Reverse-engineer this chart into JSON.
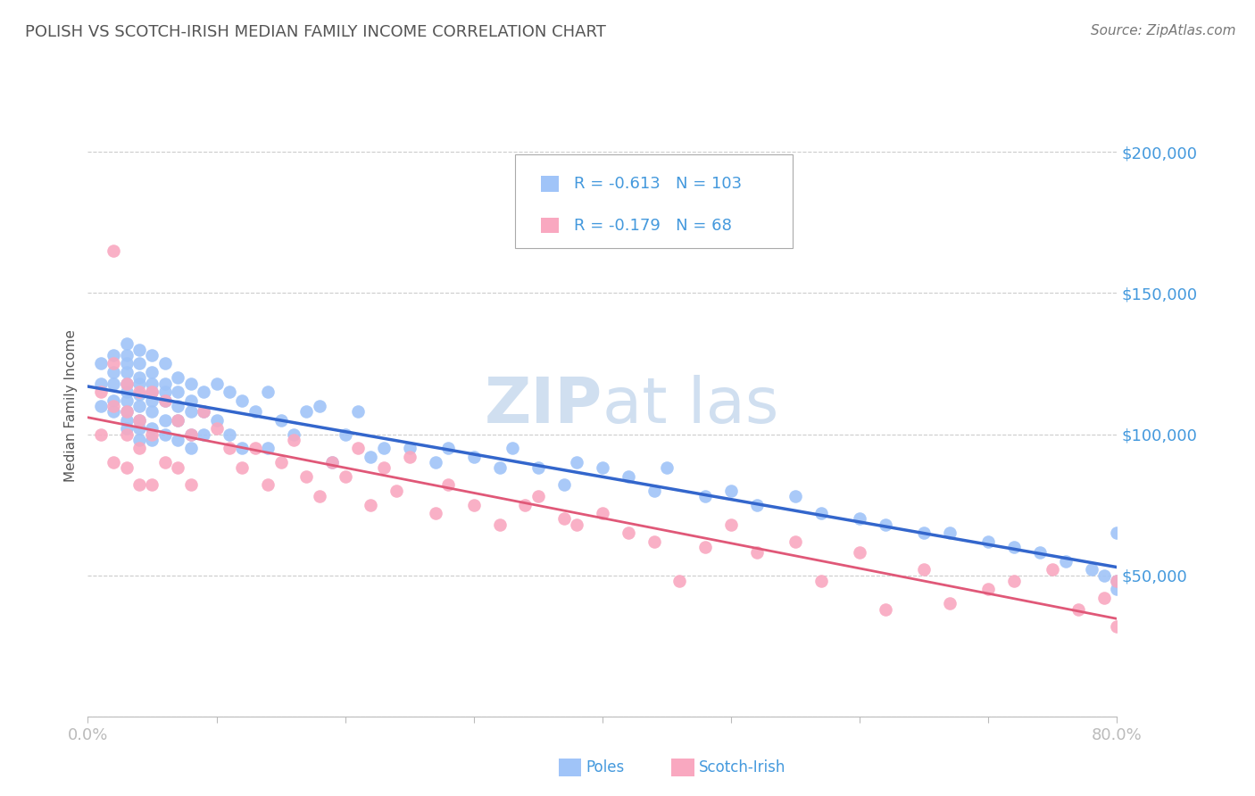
{
  "title": "POLISH VS SCOTCH-IRISH MEDIAN FAMILY INCOME CORRELATION CHART",
  "source": "Source: ZipAtlas.com",
  "ylabel": "Median Family Income",
  "xlim": [
    0.0,
    0.8
  ],
  "ylim": [
    0,
    220000
  ],
  "yticks": [
    0,
    50000,
    100000,
    150000,
    200000
  ],
  "xticks": [
    0.0,
    0.1,
    0.2,
    0.3,
    0.4,
    0.5,
    0.6,
    0.7,
    0.8
  ],
  "poles_color": "#a0c4f8",
  "scotch_color": "#f9a8c0",
  "poles_line_color": "#3366cc",
  "scotch_line_color": "#e05878",
  "R_poles": -0.613,
  "N_poles": 103,
  "R_scotch": -0.179,
  "N_scotch": 68,
  "background_color": "#ffffff",
  "grid_color": "#cccccc",
  "title_color": "#555555",
  "label_color": "#4499dd",
  "legend_text_color": "#333333",
  "watermark_color": "#d0dff0",
  "poles_x": [
    0.01,
    0.01,
    0.01,
    0.02,
    0.02,
    0.02,
    0.02,
    0.02,
    0.03,
    0.03,
    0.03,
    0.03,
    0.03,
    0.03,
    0.03,
    0.03,
    0.03,
    0.03,
    0.04,
    0.04,
    0.04,
    0.04,
    0.04,
    0.04,
    0.04,
    0.04,
    0.04,
    0.05,
    0.05,
    0.05,
    0.05,
    0.05,
    0.05,
    0.05,
    0.05,
    0.06,
    0.06,
    0.06,
    0.06,
    0.06,
    0.06,
    0.07,
    0.07,
    0.07,
    0.07,
    0.07,
    0.08,
    0.08,
    0.08,
    0.08,
    0.08,
    0.09,
    0.09,
    0.09,
    0.1,
    0.1,
    0.11,
    0.11,
    0.12,
    0.12,
    0.13,
    0.14,
    0.14,
    0.15,
    0.16,
    0.17,
    0.18,
    0.19,
    0.2,
    0.21,
    0.22,
    0.23,
    0.25,
    0.27,
    0.28,
    0.3,
    0.32,
    0.33,
    0.35,
    0.37,
    0.38,
    0.4,
    0.42,
    0.44,
    0.45,
    0.48,
    0.5,
    0.52,
    0.55,
    0.57,
    0.6,
    0.62,
    0.65,
    0.67,
    0.7,
    0.72,
    0.74,
    0.76,
    0.78,
    0.79,
    0.8,
    0.8,
    0.8
  ],
  "poles_y": [
    125000,
    118000,
    110000,
    128000,
    122000,
    118000,
    112000,
    108000,
    132000,
    128000,
    125000,
    122000,
    118000,
    115000,
    112000,
    108000,
    105000,
    102000,
    130000,
    125000,
    120000,
    118000,
    114000,
    110000,
    105000,
    102000,
    98000,
    128000,
    122000,
    118000,
    115000,
    112000,
    108000,
    102000,
    98000,
    125000,
    118000,
    115000,
    112000,
    105000,
    100000,
    120000,
    115000,
    110000,
    105000,
    98000,
    118000,
    112000,
    108000,
    100000,
    95000,
    115000,
    108000,
    100000,
    118000,
    105000,
    115000,
    100000,
    112000,
    95000,
    108000,
    115000,
    95000,
    105000,
    100000,
    108000,
    110000,
    90000,
    100000,
    108000,
    92000,
    95000,
    95000,
    90000,
    95000,
    92000,
    88000,
    95000,
    88000,
    82000,
    90000,
    88000,
    85000,
    80000,
    88000,
    78000,
    80000,
    75000,
    78000,
    72000,
    70000,
    68000,
    65000,
    65000,
    62000,
    60000,
    58000,
    55000,
    52000,
    50000,
    65000,
    48000,
    45000
  ],
  "scotch_x": [
    0.01,
    0.01,
    0.02,
    0.02,
    0.02,
    0.02,
    0.03,
    0.03,
    0.03,
    0.03,
    0.04,
    0.04,
    0.04,
    0.04,
    0.05,
    0.05,
    0.05,
    0.06,
    0.06,
    0.07,
    0.07,
    0.08,
    0.08,
    0.09,
    0.1,
    0.11,
    0.12,
    0.13,
    0.14,
    0.15,
    0.16,
    0.17,
    0.18,
    0.19,
    0.2,
    0.21,
    0.22,
    0.23,
    0.24,
    0.25,
    0.27,
    0.28,
    0.3,
    0.32,
    0.34,
    0.35,
    0.37,
    0.38,
    0.4,
    0.42,
    0.44,
    0.46,
    0.48,
    0.5,
    0.52,
    0.55,
    0.57,
    0.6,
    0.62,
    0.65,
    0.67,
    0.7,
    0.72,
    0.75,
    0.77,
    0.79,
    0.8,
    0.8
  ],
  "scotch_y": [
    115000,
    100000,
    165000,
    125000,
    110000,
    90000,
    118000,
    108000,
    100000,
    88000,
    115000,
    105000,
    95000,
    82000,
    115000,
    100000,
    82000,
    112000,
    90000,
    105000,
    88000,
    100000,
    82000,
    108000,
    102000,
    95000,
    88000,
    95000,
    82000,
    90000,
    98000,
    85000,
    78000,
    90000,
    85000,
    95000,
    75000,
    88000,
    80000,
    92000,
    72000,
    82000,
    75000,
    68000,
    75000,
    78000,
    70000,
    68000,
    72000,
    65000,
    62000,
    48000,
    60000,
    68000,
    58000,
    62000,
    48000,
    58000,
    38000,
    52000,
    40000,
    45000,
    48000,
    52000,
    38000,
    42000,
    48000,
    32000
  ]
}
